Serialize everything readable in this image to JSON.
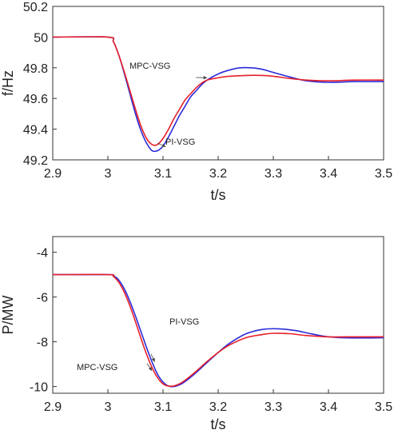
{
  "chart_data": [
    {
      "type": "line",
      "xlabel": "t/s",
      "ylabel": "f/Hz",
      "xlim": [
        2.9,
        3.5
      ],
      "ylim": [
        49.2,
        50.2
      ],
      "xticks": [
        "2.9",
        "3",
        "3.1",
        "3.2",
        "3.3",
        "3.4",
        "3.5"
      ],
      "yticks": [
        "49.2",
        "49.4",
        "49.6",
        "49.8",
        "50",
        "50.2"
      ],
      "grid": false,
      "legend": "none",
      "annotations": [
        {
          "text": "MPC-VSG",
          "series": "MPC-VSG",
          "at": [
            3.18,
            49.735
          ]
        },
        {
          "text": "PI-VSG",
          "series": "PI-VSG",
          "at": [
            3.105,
            49.285
          ]
        }
      ],
      "series": [
        {
          "name": "MPC-VSG",
          "color": "#e8202a",
          "x": [
            2.9,
            3.0,
            3.01,
            3.02,
            3.03,
            3.04,
            3.05,
            3.06,
            3.07,
            3.08,
            3.09,
            3.1,
            3.11,
            3.12,
            3.13,
            3.14,
            3.15,
            3.16,
            3.17,
            3.18,
            3.2,
            3.22,
            3.25,
            3.28,
            3.3,
            3.33,
            3.36,
            3.4,
            3.45,
            3.5
          ],
          "y": [
            50.0,
            50.0,
            49.97,
            49.88,
            49.77,
            49.65,
            49.53,
            49.42,
            49.34,
            49.3,
            49.3,
            49.34,
            49.4,
            49.47,
            49.53,
            49.59,
            49.63,
            49.67,
            49.7,
            49.72,
            49.735,
            49.745,
            49.75,
            49.75,
            49.745,
            49.73,
            49.72,
            49.715,
            49.72,
            49.72
          ]
        },
        {
          "name": "PI-VSG",
          "color": "#2b2bd9",
          "x": [
            2.9,
            3.0,
            3.01,
            3.02,
            3.03,
            3.04,
            3.05,
            3.06,
            3.07,
            3.08,
            3.09,
            3.1,
            3.11,
            3.12,
            3.13,
            3.14,
            3.15,
            3.16,
            3.17,
            3.18,
            3.2,
            3.22,
            3.24,
            3.26,
            3.28,
            3.3,
            3.33,
            3.36,
            3.4,
            3.45,
            3.5
          ],
          "y": [
            50.0,
            50.0,
            49.97,
            49.88,
            49.76,
            49.63,
            49.5,
            49.39,
            49.31,
            49.26,
            49.26,
            49.29,
            49.35,
            49.42,
            49.49,
            49.55,
            49.61,
            49.65,
            49.69,
            49.72,
            49.76,
            49.785,
            49.8,
            49.8,
            49.79,
            49.77,
            49.74,
            49.715,
            49.705,
            49.71,
            49.71
          ]
        }
      ]
    },
    {
      "type": "line",
      "xlabel": "t/s",
      "ylabel": "P/MW",
      "xlim": [
        2.9,
        3.5
      ],
      "ylim": [
        -10.3,
        -3.3
      ],
      "xticks": [
        "2.9",
        "3",
        "3.1",
        "3.2",
        "3.3",
        "3.4",
        "3.5"
      ],
      "yticks": [
        "-10",
        "-8",
        "-6",
        "-4"
      ],
      "ytick_values": [
        -10,
        -8,
        -6,
        -4
      ],
      "grid": false,
      "legend": "none",
      "annotations": [
        {
          "text": "PI-VSG",
          "series": "PI-VSG",
          "at": [
            3.085,
            -8.9
          ]
        },
        {
          "text": "MPC-VSG",
          "series": "MPC-VSG",
          "at": [
            3.08,
            -9.3
          ]
        }
      ],
      "series": [
        {
          "name": "MPC-VSG",
          "color": "#e8202a",
          "x": [
            2.9,
            3.0,
            3.01,
            3.02,
            3.03,
            3.04,
            3.05,
            3.06,
            3.07,
            3.08,
            3.09,
            3.1,
            3.11,
            3.12,
            3.13,
            3.14,
            3.16,
            3.18,
            3.2,
            3.22,
            3.25,
            3.28,
            3.3,
            3.33,
            3.36,
            3.4,
            3.45,
            3.5
          ],
          "y": [
            -5.0,
            -5.0,
            -5.08,
            -5.35,
            -5.8,
            -6.4,
            -7.1,
            -7.85,
            -8.55,
            -9.15,
            -9.6,
            -9.88,
            -9.98,
            -9.97,
            -9.88,
            -9.72,
            -9.32,
            -8.88,
            -8.48,
            -8.15,
            -7.82,
            -7.68,
            -7.62,
            -7.64,
            -7.72,
            -7.78,
            -7.78,
            -7.78
          ]
        },
        {
          "name": "PI-VSG",
          "color": "#2b2bd9",
          "x": [
            2.9,
            3.0,
            3.01,
            3.02,
            3.03,
            3.04,
            3.05,
            3.06,
            3.07,
            3.08,
            3.09,
            3.1,
            3.11,
            3.12,
            3.13,
            3.14,
            3.16,
            3.18,
            3.2,
            3.22,
            3.25,
            3.28,
            3.31,
            3.34,
            3.37,
            3.4,
            3.45,
            3.5
          ],
          "y": [
            -5.0,
            -5.0,
            -5.05,
            -5.25,
            -5.65,
            -6.2,
            -6.85,
            -7.55,
            -8.25,
            -8.9,
            -9.45,
            -9.8,
            -9.98,
            -10.0,
            -9.92,
            -9.78,
            -9.38,
            -8.92,
            -8.48,
            -8.08,
            -7.65,
            -7.45,
            -7.42,
            -7.5,
            -7.65,
            -7.78,
            -7.83,
            -7.82
          ]
        }
      ]
    }
  ]
}
